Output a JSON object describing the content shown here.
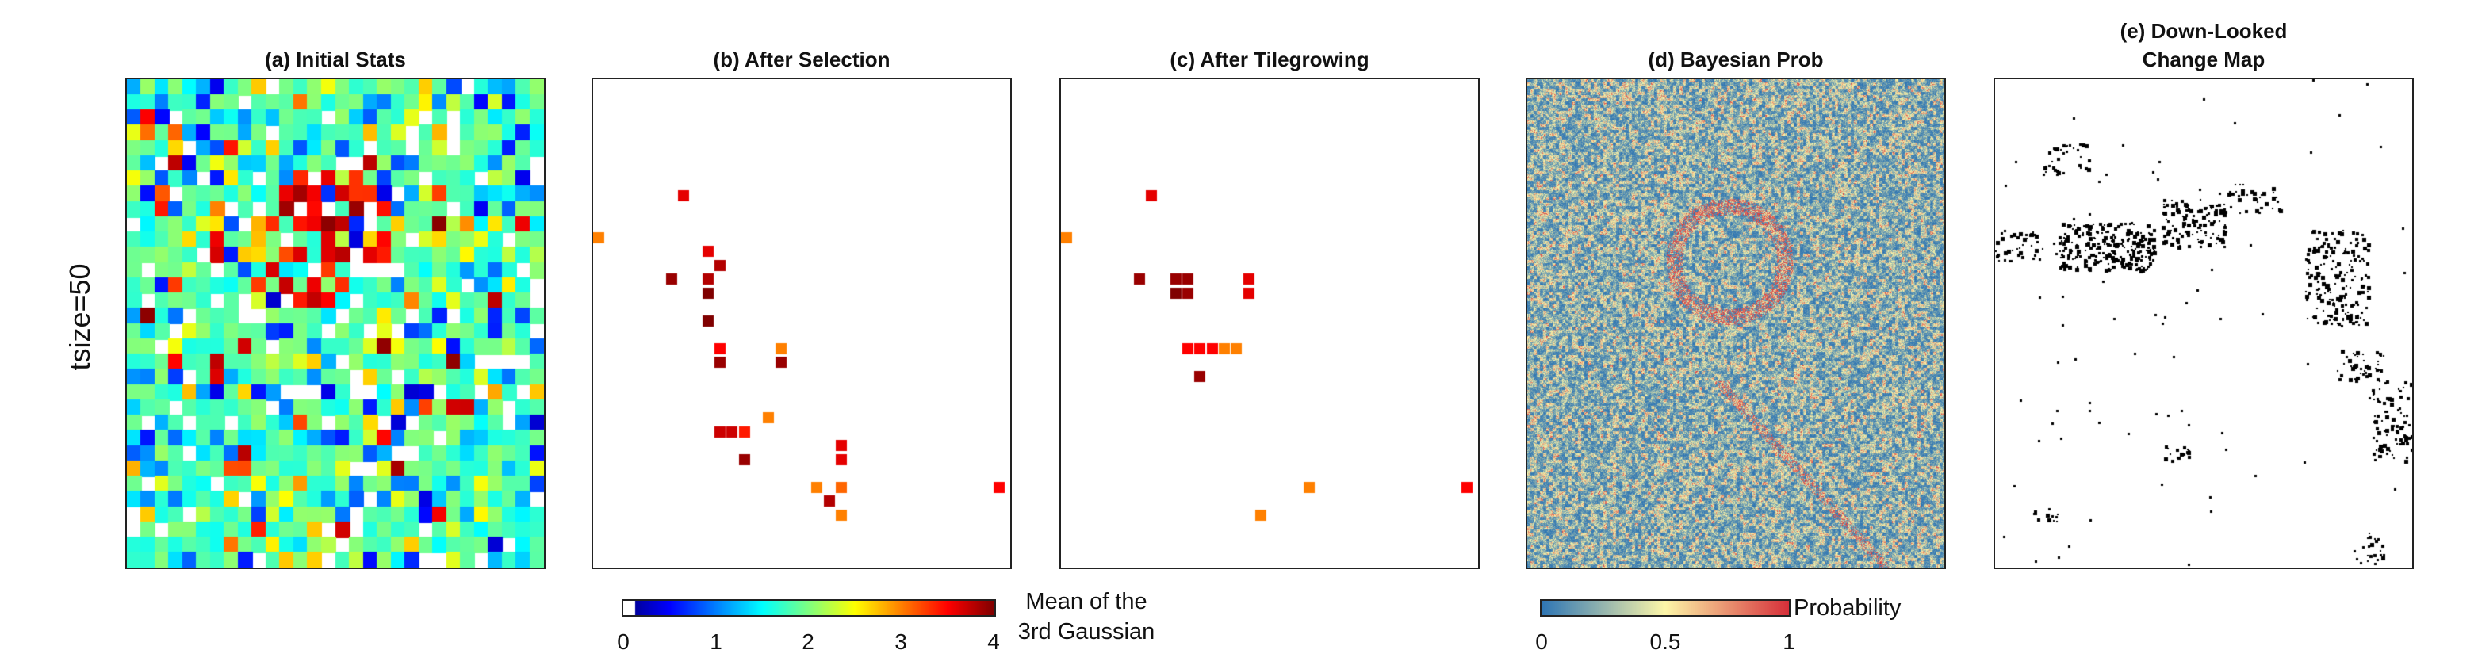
{
  "row_label": "tsize=50",
  "panels": [
    {
      "title": "(a) Initial Stats"
    },
    {
      "title": "(b) After Selection"
    },
    {
      "title": "(c) After Tilegrowing"
    },
    {
      "title": "(d) Bayesian Prob"
    },
    {
      "title_line1": "(e) Down-Looked",
      "title_line2": "Change Map"
    }
  ],
  "colorbar_mean": {
    "label_line1": "Mean of the",
    "label_line2": "3rd Gaussian",
    "ticks": [
      "0",
      "1",
      "2",
      "3",
      "4"
    ],
    "range": [
      0,
      4
    ],
    "colormap": "jet"
  },
  "colorbar_prob": {
    "label": "Probability",
    "ticks": [
      "0",
      "0.5",
      "1"
    ],
    "range": [
      0,
      1
    ],
    "colormap": "blue-yellow-red"
  },
  "chart_data": {
    "type": "heatmap",
    "colors": {
      "jet_low": "#00008f",
      "jet_high": "#800000",
      "prob_low": "#2f76b4",
      "prob_mid": "#fdf6a8",
      "prob_high": "#d6303a"
    },
    "grid_size": [
      30,
      32
    ],
    "selected_tiles_b": [
      [
        0,
        11,
        3.0
      ],
      [
        6,
        14,
        3.9
      ],
      [
        7,
        8,
        3.6
      ],
      [
        9,
        12,
        3.6
      ],
      [
        9,
        14,
        3.8
      ],
      [
        10,
        19,
        3.5
      ],
      [
        10,
        20,
        3.9
      ],
      [
        9,
        17,
        4.0
      ],
      [
        9,
        15,
        4.0
      ],
      [
        10,
        13,
        3.8
      ],
      [
        10,
        25,
        3.7
      ],
      [
        11,
        25,
        3.7
      ],
      [
        12,
        27,
        3.9
      ],
      [
        12,
        25,
        3.4
      ],
      [
        14,
        24,
        3.0
      ],
      [
        15,
        19,
        3.0
      ],
      [
        15,
        20,
        3.9
      ],
      [
        20,
        31,
        3.0
      ],
      [
        18,
        29,
        3.0
      ],
      [
        19,
        30,
        3.8
      ],
      [
        20,
        26,
        3.6
      ],
      [
        20,
        27,
        3.6
      ],
      [
        20,
        29,
        3.1
      ],
      [
        33,
        29,
        3.5
      ]
    ],
    "selected_tiles_c": [
      [
        0,
        11,
        3.0
      ],
      [
        6,
        14,
        3.9
      ],
      [
        7,
        8,
        3.6
      ],
      [
        9,
        14,
        3.9
      ],
      [
        9,
        15,
        4.0
      ],
      [
        10,
        14,
        3.9
      ],
      [
        10,
        15,
        3.9
      ],
      [
        10,
        19,
        3.5
      ],
      [
        11,
        19,
        3.5
      ],
      [
        12,
        19,
        3.5
      ],
      [
        11,
        21,
        3.9
      ],
      [
        13,
        19,
        3.0
      ],
      [
        15,
        14,
        3.6
      ],
      [
        15,
        15,
        3.6
      ],
      [
        14,
        19,
        3.0
      ],
      [
        16,
        31,
        3.0
      ],
      [
        20,
        29,
        3.0
      ],
      [
        33,
        29,
        3.5
      ]
    ]
  }
}
